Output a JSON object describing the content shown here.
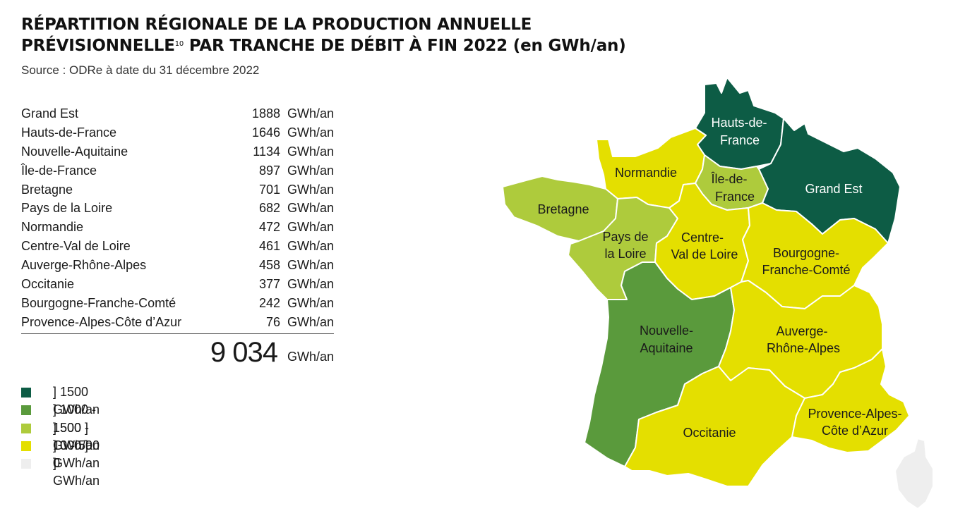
{
  "title": {
    "line1": "RÉPARTITION RÉGIONALE DE LA PRODUCTION ANNUELLE",
    "line2a": "PRÉVISIONNELLE",
    "line2_sup": "10",
    "line2b": " PAR TRANCHE DE DÉBIT À FIN 2022 (en GWh/an)"
  },
  "source": "Source : ODRe à date du 31 décembre 2022",
  "unit": "GWh/an",
  "rows": [
    {
      "region": "Grand Est",
      "value": "1888"
    },
    {
      "region": "Hauts-de-France",
      "value": "1646"
    },
    {
      "region": "Nouvelle-Aquitaine",
      "value": "1134"
    },
    {
      "region": "Île-de-France",
      "value": "897"
    },
    {
      "region": "Bretagne",
      "value": "701"
    },
    {
      "region": "Pays de la Loire",
      "value": "682"
    },
    {
      "region": "Normandie",
      "value": "472"
    },
    {
      "region": "Centre-Val de Loire",
      "value": "461"
    },
    {
      "region": "Auverge-Rhône-Alpes",
      "value": "458"
    },
    {
      "region": "Occitanie",
      "value": "377"
    },
    {
      "region": "Bourgogne-Franche-Comté",
      "value": "242"
    },
    {
      "region": "Provence-Alpes-Côte d’Azur",
      "value": "76"
    }
  ],
  "total": {
    "value": "9 034",
    "unit": "GWh/an"
  },
  "legend": [
    {
      "label": "] 1500 GWh/an",
      "color": "#0d5c45"
    },
    {
      "label": "] 1000 - 1500 ] GWh/an",
      "color": "#5a9a3c"
    },
    {
      "label": "] 500 - 1000 ] GWh/an",
      "color": "#aecb3c"
    },
    {
      "label": "] 0 - 500 ] GWh/an",
      "color": "#e4df00"
    },
    {
      "label": "0",
      "color": "#eeeeee"
    }
  ],
  "map": {
    "regions": [
      {
        "key": "hdf",
        "line1": "Hauts-de-",
        "line2": "France",
        "color": "#0d5c45",
        "label_color": "#ffffff"
      },
      {
        "key": "ge",
        "line1": "Grand Est",
        "line2": "",
        "color": "#0d5c45",
        "label_color": "#ffffff"
      },
      {
        "key": "nor",
        "line1": "Normandie",
        "line2": "",
        "color": "#e4df00",
        "label_color": "#1a1a1a"
      },
      {
        "key": "idf",
        "line1": "Île-de-",
        "line2": "France",
        "color": "#aecb3c",
        "label_color": "#1a1a1a"
      },
      {
        "key": "bre",
        "line1": "Bretagne",
        "line2": "",
        "color": "#aecb3c",
        "label_color": "#1a1a1a"
      },
      {
        "key": "pdl",
        "line1": "Pays de",
        "line2": "la Loire",
        "color": "#aecb3c",
        "label_color": "#1a1a1a"
      },
      {
        "key": "cvl",
        "line1": "Centre-",
        "line2": "Val de Loire",
        "color": "#e4df00",
        "label_color": "#1a1a1a"
      },
      {
        "key": "bfc",
        "line1": "Bourgogne-",
        "line2": "Franche-Comté",
        "color": "#e4df00",
        "label_color": "#1a1a1a"
      },
      {
        "key": "na",
        "line1": "Nouvelle-",
        "line2": "Aquitaine",
        "color": "#5a9a3c",
        "label_color": "#1a1a1a"
      },
      {
        "key": "ara",
        "line1": "Auverge-",
        "line2": "Rhône-Alpes",
        "color": "#e4df00",
        "label_color": "#1a1a1a"
      },
      {
        "key": "occ",
        "line1": "Occitanie",
        "line2": "",
        "color": "#e4df00",
        "label_color": "#1a1a1a"
      },
      {
        "key": "paca",
        "line1": "Provence-Alpes-",
        "line2": "Côte d’Azur",
        "color": "#e4df00",
        "label_color": "#1a1a1a"
      },
      {
        "key": "cor",
        "line1": "",
        "line2": "",
        "color": "#eeeeee",
        "label_color": "#1a1a1a"
      }
    ]
  }
}
